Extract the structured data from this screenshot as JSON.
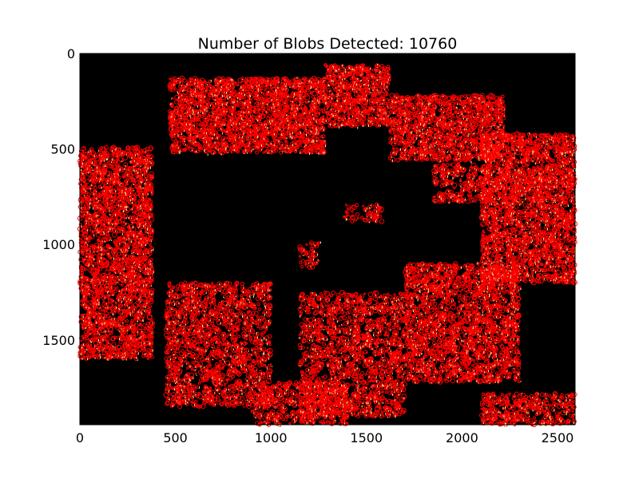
{
  "chart_data": {
    "type": "scatter",
    "title": "Number of Blobs Detected: 10760",
    "xlabel": "",
    "ylabel": "",
    "xlim": [
      0,
      2592
    ],
    "ylim": [
      1944,
      0
    ],
    "y_axis_inverted": true,
    "grid": false,
    "legend": "none",
    "background_color": "#000000",
    "blob_color": "#ff0000",
    "feature_color": "#ffff99",
    "x_ticks": [
      0,
      500,
      1000,
      1500,
      2000,
      2500
    ],
    "x_tick_labels": [
      "0",
      "500",
      "1000",
      "1500",
      "2000",
      "2500"
    ],
    "y_ticks": [
      0,
      500,
      1000,
      1500
    ],
    "y_tick_labels": [
      "0",
      "500",
      "1000",
      "1500"
    ],
    "blob_count": 10760,
    "blob_regions": [
      {
        "x": [
          470,
          1280
        ],
        "y": [
          130,
          520
        ],
        "density": 0.9
      },
      {
        "x": [
          1280,
          1620
        ],
        "y": [
          60,
          380
        ],
        "density": 0.9
      },
      {
        "x": [
          1620,
          2220
        ],
        "y": [
          220,
          560
        ],
        "density": 0.85
      },
      {
        "x": [
          2100,
          2592
        ],
        "y": [
          420,
          1200
        ],
        "density": 0.85
      },
      {
        "x": [
          0,
          380
        ],
        "y": [
          490,
          1600
        ],
        "density": 0.8
      },
      {
        "x": [
          1700,
          2300
        ],
        "y": [
          1100,
          1720
        ],
        "density": 0.75
      },
      {
        "x": [
          450,
          1000
        ],
        "y": [
          1200,
          1850
        ],
        "density": 0.6
      },
      {
        "x": [
          1150,
          1700
        ],
        "y": [
          1250,
          1900
        ],
        "density": 0.6
      },
      {
        "x": [
          2100,
          2592
        ],
        "y": [
          1780,
          1944
        ],
        "density": 0.7
      },
      {
        "x": [
          900,
          1400
        ],
        "y": [
          1720,
          1944
        ],
        "density": 0.6
      },
      {
        "x": [
          1850,
          2150
        ],
        "y": [
          580,
          780
        ],
        "density": 0.6
      },
      {
        "x": [
          1380,
          1580
        ],
        "y": [
          790,
          880
        ],
        "density": 0.5
      },
      {
        "x": [
          1150,
          1250
        ],
        "y": [
          990,
          1120
        ],
        "density": 0.5
      }
    ]
  }
}
